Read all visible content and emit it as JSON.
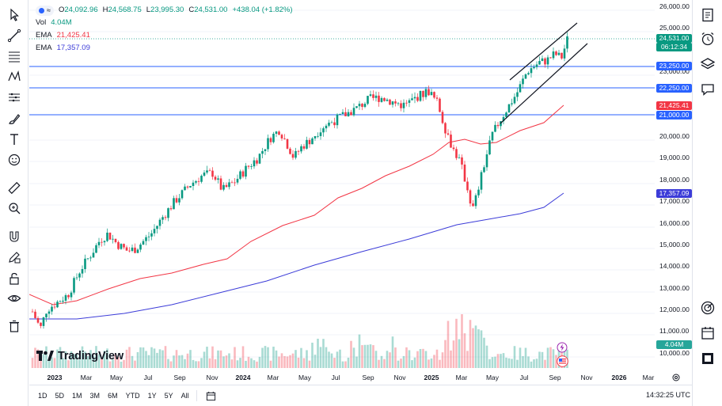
{
  "legend": {
    "ohlc": [
      {
        "label": "O",
        "value": "24,092.96"
      },
      {
        "label": "H",
        "value": "24,568.75"
      },
      {
        "label": "L",
        "value": "23,995.30"
      },
      {
        "label": "C",
        "value": "24,531.00"
      }
    ],
    "change": "+438.04 (+1.82%)",
    "vol_label": "Vol",
    "vol_value": "4.04M",
    "ema1_label": "EMA",
    "ema1_value": "21,425.41",
    "ema2_label": "EMA",
    "ema2_value": "17,357.09"
  },
  "price_axis": {
    "ticks": [
      "26,000.00",
      "25,000.00",
      "23,000.00",
      "20,000.00",
      "19,000.00",
      "18,000.00",
      "17,000.00",
      "16,000.00",
      "15,000.00",
      "14,000.00",
      "13,000.00",
      "12,000.00",
      "11,000.00",
      "10,000.00"
    ],
    "tags": {
      "last_price": "24,531.00",
      "countdown": "06:12:34",
      "level_23250": "23,250.00",
      "level_22250": "22,250.00",
      "ema1": "21,425.41",
      "level_21000": "21,000.00",
      "ema2": "17,357.09",
      "volume": "4.04M"
    }
  },
  "time_axis": [
    "2023",
    "Mar",
    "May",
    "Jul",
    "Sep",
    "Nov",
    "2024",
    "Mar",
    "May",
    "Jul",
    "Sep",
    "Nov",
    "2025",
    "Mar",
    "May",
    "Jul",
    "Sep",
    "Nov",
    "2026",
    "Mar"
  ],
  "range_buttons": [
    "1D",
    "5D",
    "1M",
    "3M",
    "6M",
    "YTD",
    "1Y",
    "5Y",
    "All"
  ],
  "bottom_time": "14:32:25 UTC",
  "logo_text": "TradingView",
  "colors": {
    "up": "#089981",
    "down": "#f23645",
    "ema_fast": "#f23645",
    "ema_slow": "#3c3cd8",
    "level_line": "#2962ff"
  }
}
